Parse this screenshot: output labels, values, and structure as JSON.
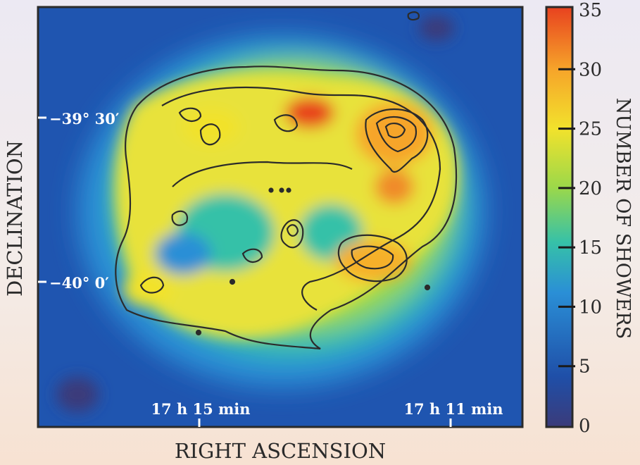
{
  "chart_data": {
    "type": "heatmap",
    "xlabel": "RIGHT ASCENSION",
    "ylabel": "DECLINATION",
    "colorbar_label": "NUMBER OF SHOWERS",
    "colorbar_range": [
      0,
      35
    ],
    "colorbar_ticks": [
      "0",
      "5",
      "10",
      "15",
      "20",
      "25",
      "30",
      "35"
    ],
    "x_ticks": [
      "17 h 15 min",
      "17 h 11 min"
    ],
    "y_ticks": [
      "−39° 30′",
      "−40° 0′"
    ],
    "colormap": [
      "#3b3b7a",
      "#1f4fa8",
      "#2a8fd6",
      "#36c1a8",
      "#9bd84a",
      "#f2e22c",
      "#f6a52a",
      "#e8421f"
    ],
    "contour_color": "#2b2b2b",
    "grid": false
  }
}
